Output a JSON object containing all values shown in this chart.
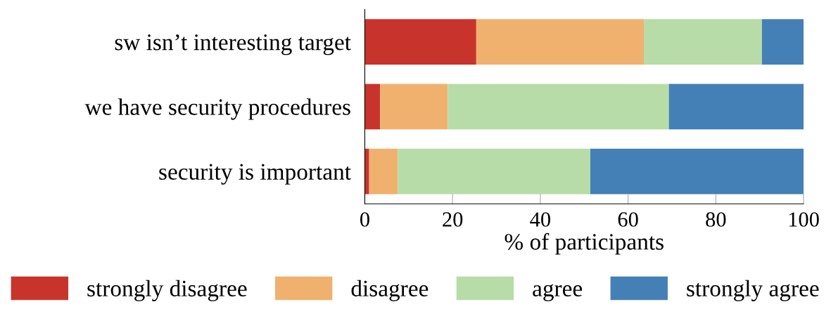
{
  "chart_data": {
    "type": "bar",
    "orientation": "horizontal",
    "stacked": true,
    "categories": [
      "sw isn’t interesting target",
      "we have security procedures",
      "security is important"
    ],
    "xlabel": "% of participants",
    "xlim": [
      0,
      100
    ],
    "xticks": [
      0,
      20,
      40,
      60,
      80,
      100
    ],
    "grid": false,
    "legend": "bottom",
    "series": [
      {
        "name": "strongly disagree",
        "color": "#c8342b",
        "values": [
          25.4,
          3.5,
          1.0
        ]
      },
      {
        "name": "disagree",
        "color": "#f0b16e",
        "values": [
          38.2,
          15.4,
          6.5
        ]
      },
      {
        "name": "agree",
        "color": "#b7dca8",
        "values": [
          26.9,
          50.4,
          43.9
        ]
      },
      {
        "name": "strongly agree",
        "color": "#4480b5",
        "values": [
          9.5,
          30.7,
          48.6
        ]
      }
    ]
  }
}
